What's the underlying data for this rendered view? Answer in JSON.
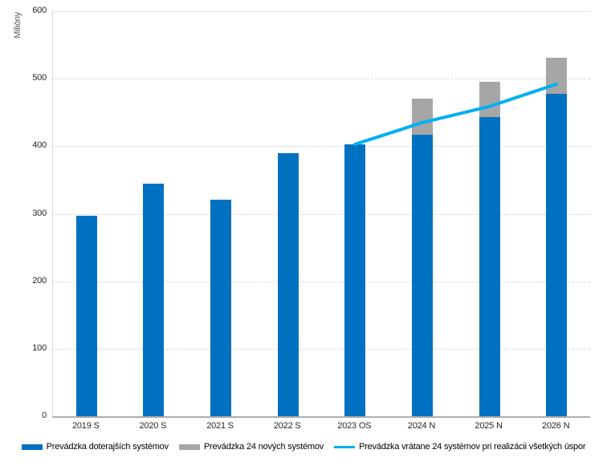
{
  "chart_data": {
    "type": "bar",
    "subtype": "stacked-columns-with-line-overlay",
    "title": "",
    "xlabel": "",
    "ylabel": "Milióny",
    "ylim": [
      0,
      600
    ],
    "yticks": [
      0,
      100,
      200,
      300,
      400,
      500,
      600
    ],
    "grid": "horizontal-dashed",
    "legend_position": "bottom",
    "categories": [
      "2019 S",
      "2020 S",
      "2021 S",
      "2022 S",
      "2023 OS",
      "2024 N",
      "2025 N",
      "2026 N"
    ],
    "series": [
      {
        "name": "Prevádzka doterajších systémov",
        "type": "bar",
        "color": "#0070C0",
        "values": [
          297,
          344,
          321,
          390,
          403,
          417,
          443,
          478
        ]
      },
      {
        "name": "Prevádzka 24 nových systémov",
        "type": "bar-stacked-on-previous",
        "color": "#A6A6A6",
        "values": [
          0,
          0,
          0,
          0,
          0,
          54,
          52,
          53
        ]
      },
      {
        "name": "Prevádzka vrátane 24 systémov pri realizácii všetkých úspor",
        "type": "line",
        "color": "#00B0F0",
        "values": [
          null,
          null,
          null,
          null,
          403,
          435,
          459,
          492
        ]
      }
    ],
    "stacked_totals": [
      297,
      344,
      321,
      390,
      403,
      471,
      495,
      531
    ]
  },
  "colors": {
    "background": "#FFFFFF",
    "gridline": "#D9D9D9",
    "axis_line": "#ADADAD",
    "tick_text": "#262626",
    "axis_title_text": "#595959"
  }
}
